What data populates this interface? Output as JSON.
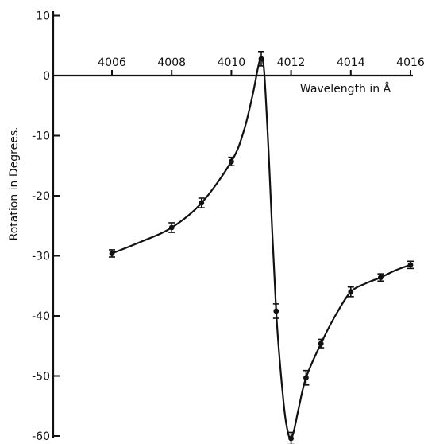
{
  "chart_data": {
    "type": "line",
    "title": "",
    "xlabel": "Wavelength in Å",
    "ylabel": "Rotation in Degrees.",
    "xlim": [
      4006,
      4016
    ],
    "ylim": [
      -60,
      10
    ],
    "x_ticks": [
      4006,
      4008,
      4010,
      4012,
      4014,
      4016
    ],
    "x_tick_labels": [
      "4006",
      "4008",
      "4010",
      "4012",
      "4014",
      "4016"
    ],
    "y_ticks": [
      10,
      0,
      -10,
      -20,
      -30,
      -40,
      -50,
      -60
    ],
    "y_tick_labels": [
      "10",
      "0",
      "-10",
      "-20",
      "-30",
      "-40",
      "-50",
      "-60"
    ],
    "grid": false,
    "legend": "none",
    "series": [
      {
        "x": [
          4006,
          4008,
          4009,
          4010,
          4011,
          4011.5,
          4012,
          4012.5,
          4013,
          4014,
          4015,
          4016
        ],
        "y": [
          -29.6,
          -25.3,
          -21.2,
          -14.3,
          2.8,
          -39.2,
          -60.4,
          -50.3,
          -44.6,
          -36.0,
          -33.6,
          -31.5
        ],
        "error": [
          0.6,
          0.8,
          0.8,
          0.7,
          1.2,
          1.2,
          1.0,
          1.2,
          0.7,
          0.8,
          0.6,
          0.6
        ]
      }
    ],
    "curve": {
      "x": [
        4006,
        4007,
        4008,
        4009,
        4010,
        4010.4,
        4010.7,
        4010.9,
        4011,
        4011.1,
        4011.25,
        4011.5,
        4011.75,
        4011.9,
        4012,
        4012.1,
        4012.25,
        4012.5,
        4013,
        4013.5,
        4014,
        4014.5,
        4015,
        4015.5,
        4016
      ],
      "y": [
        -29.6,
        -27.6,
        -25.3,
        -21.2,
        -14.3,
        -9.5,
        -3.5,
        1.5,
        2.8,
        0.5,
        -13.0,
        -39.2,
        -54.5,
        -59.5,
        -60.4,
        -59.0,
        -55.5,
        -50.3,
        -44.6,
        -39.8,
        -36.0,
        -34.6,
        -33.6,
        -32.4,
        -31.5
      ]
    }
  }
}
